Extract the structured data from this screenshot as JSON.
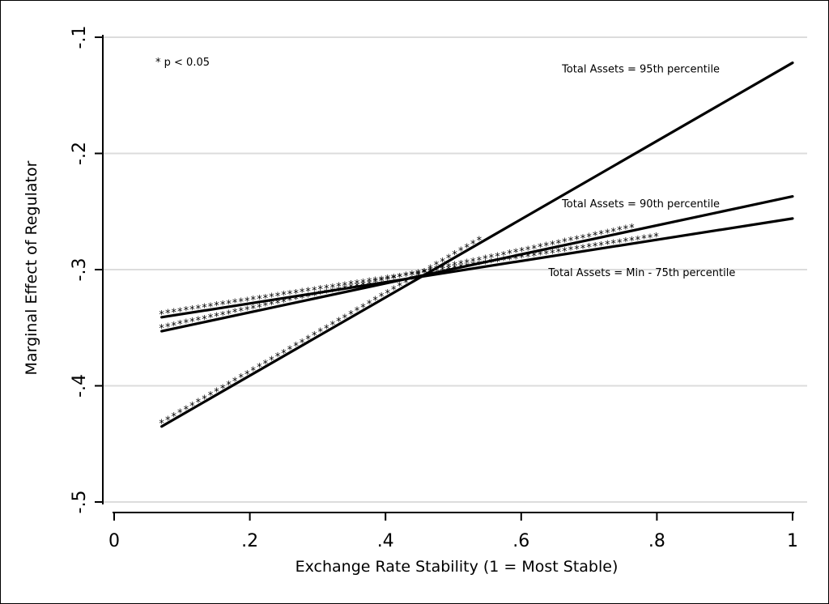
{
  "chart_data": {
    "type": "line",
    "title": "",
    "xlabel": "Exchange Rate Stability (1 = Most Stable)",
    "ylabel": "Marginal Effect of Regulator",
    "xlim": [
      0,
      1
    ],
    "ylim": [
      -0.5,
      -0.1
    ],
    "x_ticks": [
      0,
      0.2,
      0.4,
      0.6,
      0.8,
      1
    ],
    "x_tick_labels": [
      "0",
      ".2",
      ".4",
      ".6",
      ".8",
      "1"
    ],
    "y_ticks": [
      -0.1,
      -0.2,
      -0.3,
      -0.4,
      -0.5
    ],
    "y_tick_labels": [
      "-.1",
      "-.2",
      "-.3",
      "-.4",
      "-.5"
    ],
    "grid": "horizontal",
    "significance_note": "* p < 0.05",
    "series": [
      {
        "name": "Total Assets = 95th percentile",
        "x": [
          0.07,
          1.0
        ],
        "y": [
          -0.435,
          -0.122
        ],
        "significant_range": [
          0.07,
          0.545
        ],
        "label_pos": [
          0.66,
          -0.127
        ]
      },
      {
        "name": "Total Assets = 90th percentile",
        "x": [
          0.07,
          1.0
        ],
        "y": [
          -0.353,
          -0.237
        ],
        "significant_range": [
          0.07,
          0.77
        ],
        "label_pos": [
          0.66,
          -0.243
        ]
      },
      {
        "name": "Total Assets = Min - 75th percentile",
        "x": [
          0.07,
          1.0
        ],
        "y": [
          -0.341,
          -0.256
        ],
        "significant_range": [
          0.07,
          0.8
        ],
        "label_pos": [
          0.64,
          -0.302
        ]
      }
    ]
  }
}
